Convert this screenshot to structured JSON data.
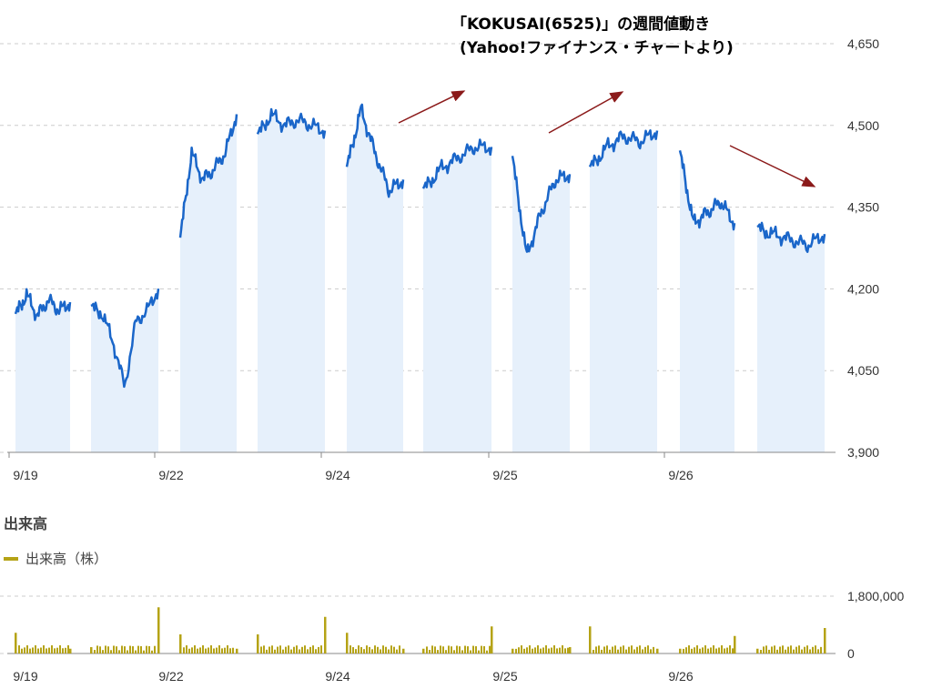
{
  "title_line1": "「KOKUSAI(6525)」の週間値動き",
  "title_line2": "(Yahoo!ファイナンス・チャートより)",
  "volume_title": "出来高",
  "volume_legend": "出来高（株）",
  "colors": {
    "price_line": "#1a66c9",
    "price_fill": "#e6f0fb",
    "volume": "#b5a316",
    "arrow": "#8b1a1a",
    "grid": "#cccccc"
  },
  "chart_data": [
    {
      "type": "line",
      "title": "「KOKUSAI(6525)」の週間値動き",
      "ylim": [
        3900,
        4650
      ],
      "yticks": [
        "4,650",
        "4,500",
        "4,350",
        "4,200",
        "4,050",
        "3,900"
      ],
      "xticks": [
        "9/19",
        "9/22",
        "9/24",
        "9/25",
        "9/26"
      ],
      "grid": "horizontal dashed",
      "sessions": [
        {
          "session": 1,
          "values": [
            4150,
            4190,
            4150,
            4180,
            4160,
            4175
          ]
        },
        {
          "session": 2,
          "values": [
            4165,
            4155,
            4100,
            4020,
            4140,
            4160,
            4200
          ]
        },
        {
          "session": 3,
          "values": [
            4290,
            4450,
            4400,
            4420,
            4450,
            4520
          ]
        },
        {
          "session": 4,
          "values": [
            4480,
            4520,
            4500,
            4510,
            4500,
            4490
          ]
        },
        {
          "session": 5,
          "values": [
            4420,
            4530,
            4450,
            4380,
            4400
          ]
        },
        {
          "session": 6,
          "values": [
            4380,
            4420,
            4440,
            4460,
            4460
          ]
        },
        {
          "session": 7,
          "values": [
            4440,
            4260,
            4340,
            4400,
            4410
          ]
        },
        {
          "session": 8,
          "values": [
            4420,
            4460,
            4480,
            4470,
            4490
          ]
        },
        {
          "session": 9,
          "values": [
            4450,
            4320,
            4340,
            4360,
            4320
          ]
        },
        {
          "session": 10,
          "values": [
            4310,
            4300,
            4290,
            4280,
            4300
          ]
        }
      ]
    },
    {
      "type": "bar",
      "title": "出来高",
      "ylim": [
        0,
        1800000
      ],
      "yticks": [
        "1,800,000",
        "0"
      ],
      "xticks": [
        "9/19",
        "9/22",
        "9/24",
        "9/25",
        "9/26"
      ],
      "series": [
        {
          "name": "出来高（株）",
          "values": [
            650000,
            150000,
            200000,
            1450000,
            600000,
            150000,
            600000,
            1150000,
            650000,
            150000,
            150000,
            850000,
            150000,
            200000,
            850000,
            150000,
            150000,
            550000,
            150000,
            800000
          ]
        }
      ]
    }
  ]
}
